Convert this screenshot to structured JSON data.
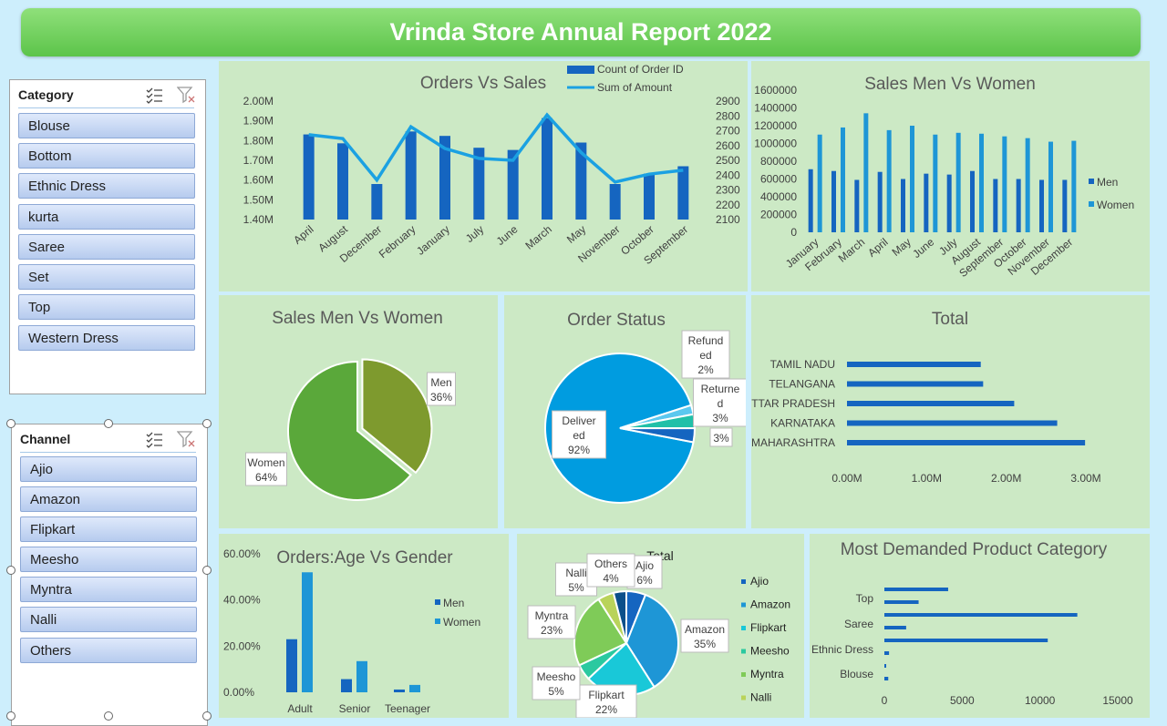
{
  "header": {
    "title": "Vrinda Store Annual Report 2022"
  },
  "slicers": {
    "category": {
      "title": "Category",
      "items": [
        "Blouse",
        "Bottom",
        "Ethnic Dress",
        "kurta",
        "Saree",
        "Set",
        "Top",
        "Western Dress"
      ]
    },
    "channel": {
      "title": "Channel",
      "items": [
        "Ajio",
        "Amazon",
        "Flipkart",
        "Meesho",
        "Myntra",
        "Nalli",
        "Others"
      ]
    }
  },
  "chart_data": [
    {
      "id": "orders-vs-sales",
      "type": "bar",
      "title": "Orders Vs Sales",
      "categories": [
        "April",
        "August",
        "December",
        "February",
        "January",
        "July",
        "June",
        "March",
        "May",
        "November",
        "October",
        "September"
      ],
      "series": [
        {
          "name": "Count of Order ID",
          "type": "bar",
          "axis": "right",
          "values": [
            2675,
            2615,
            2340,
            2695,
            2665,
            2585,
            2570,
            2785,
            2620,
            2340,
            2410,
            2460
          ]
        },
        {
          "name": "Sum of Amount",
          "type": "line",
          "axis": "left",
          "values": [
            1830000,
            1810000,
            1600000,
            1870000,
            1760000,
            1710000,
            1700000,
            1930000,
            1740000,
            1590000,
            1630000,
            1650000
          ]
        }
      ],
      "y_left": {
        "min": 1400000,
        "max": 2000000,
        "ticks": [
          "1.40M",
          "1.50M",
          "1.60M",
          "1.70M",
          "1.80M",
          "1.90M",
          "2.00M"
        ]
      },
      "y_right": {
        "min": 2100,
        "max": 2900,
        "ticks": [
          "2100",
          "2200",
          "2300",
          "2400",
          "2500",
          "2600",
          "2700",
          "2800",
          "2900"
        ]
      },
      "legend": "top-center"
    },
    {
      "id": "sales-men-vs-women-bar",
      "type": "bar",
      "title": "Sales Men Vs Women",
      "categories": [
        "January",
        "February",
        "March",
        "April",
        "May",
        "June",
        "July",
        "August",
        "September",
        "October",
        "November",
        "December"
      ],
      "series": [
        {
          "name": "Men",
          "values": [
            710000,
            690000,
            590000,
            680000,
            600000,
            660000,
            650000,
            690000,
            600000,
            600000,
            590000,
            590000
          ]
        },
        {
          "name": "Women",
          "values": [
            1100000,
            1180000,
            1340000,
            1150000,
            1200000,
            1100000,
            1120000,
            1110000,
            1080000,
            1060000,
            1020000,
            1030000
          ]
        }
      ],
      "ylim": [
        0,
        1600000
      ],
      "y_ticks": [
        "0",
        "200000",
        "400000",
        "600000",
        "800000",
        "1000000",
        "1200000",
        "1400000",
        "1600000"
      ],
      "legend": "right"
    },
    {
      "id": "sales-men-vs-women-pie",
      "type": "pie",
      "title": "Sales Men Vs Women",
      "slices": [
        {
          "label": "Men",
          "value": 36,
          "text": "Men\n36%"
        },
        {
          "label": "Women",
          "value": 64,
          "text": "Women\n64%"
        }
      ]
    },
    {
      "id": "order-status",
      "type": "pie",
      "title": "Order Status",
      "slices": [
        {
          "label": "Delivered",
          "value": 92,
          "text": "Deliver\ned\n92%"
        },
        {
          "label": "Refunded",
          "value": 2,
          "text": "Refund\ned\n2%"
        },
        {
          "label": "Returned",
          "value": 3,
          "text": "Returne\nd\n3%"
        },
        {
          "label": "",
          "value": 3,
          "text": "3%"
        }
      ]
    },
    {
      "id": "state-total",
      "type": "bar",
      "orientation": "horizontal",
      "title": "Total",
      "categories": [
        "TAMIL NADU",
        "TELANGANA",
        "UTTAR PRADESH",
        "KARNATAKA",
        "MAHARASHTRA"
      ],
      "values": [
        1680000,
        1710000,
        2100000,
        2640000,
        2990000
      ],
      "xlim": [
        0,
        3000000
      ],
      "x_ticks": [
        "0.00M",
        "1.00M",
        "2.00M",
        "3.00M"
      ]
    },
    {
      "id": "orders-age-vs-gender",
      "type": "bar",
      "title": "Orders:Age Vs Gender",
      "categories": [
        "Adult",
        "Senior",
        "Teenager"
      ],
      "series": [
        {
          "name": "Men",
          "values": [
            23,
            5.7,
            1.2
          ]
        },
        {
          "name": "Women",
          "values": [
            52,
            13.5,
            3.2
          ]
        }
      ],
      "ylim": [
        0,
        60
      ],
      "y_ticks": [
        "0.00%",
        "20.00%",
        "40.00%",
        "60.00%"
      ],
      "legend": "right"
    },
    {
      "id": "channel-total",
      "type": "pie",
      "title": "Total",
      "slices": [
        {
          "label": "Ajio",
          "value": 6,
          "text": "Ajio\n6%"
        },
        {
          "label": "Amazon",
          "value": 35,
          "text": "Amazon\n35%"
        },
        {
          "label": "Flipkart",
          "value": 22,
          "text": "Flipkart\n22%"
        },
        {
          "label": "Meesho",
          "value": 5,
          "text": "Meesho\n5%"
        },
        {
          "label": "Myntra",
          "value": 23,
          "text": "Myntra\n23%"
        },
        {
          "label": "Nalli",
          "value": 5,
          "text": "Nalli\n5%"
        },
        {
          "label": "Others",
          "value": 4,
          "text": "Others\n4%"
        }
      ],
      "legend": "right"
    },
    {
      "id": "most-demanded-category",
      "type": "bar",
      "orientation": "horizontal",
      "title": "Most Demanded Product Category",
      "bars": [
        4100,
        2200,
        12400,
        1400,
        10500,
        300,
        80,
        250
      ],
      "labelled_categories": [
        "Top",
        "Saree",
        "Ethnic Dress",
        "Blouse"
      ],
      "xlim": [
        0,
        15000
      ],
      "x_ticks": [
        "0",
        "5000",
        "10000",
        "15000"
      ]
    }
  ],
  "colors": {
    "primary_blue": "#1565c0",
    "light_blue": "#1e96d6",
    "line_blue": "#1ba1e2",
    "panel_green": "#cce9c5",
    "pie_olive": "#7e9a2e",
    "pie_green": "#5aa83a",
    "pie_cyan": "#009ce0"
  }
}
